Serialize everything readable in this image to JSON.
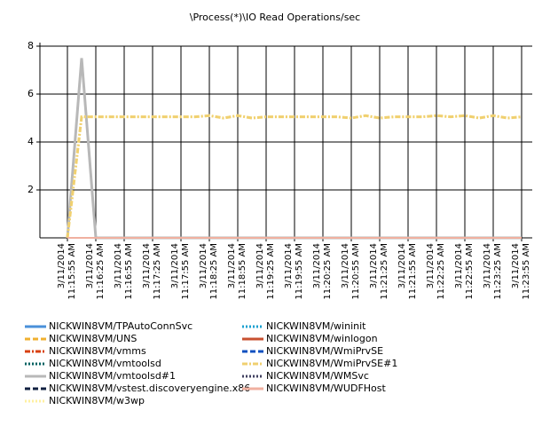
{
  "chart_data": {
    "type": "line",
    "title": "\\Process(*)\\IO Read Operations/sec",
    "categories": [
      "3/11/2014\n11:15:55 AM",
      null,
      "3/11/2014\n11:16:25 AM",
      null,
      "3/11/2014\n11:16:55 AM",
      null,
      "3/11/2014\n11:17:25 AM",
      null,
      "3/11/2014\n11:17:55 AM",
      null,
      "3/11/2014\n11:18:25 AM",
      null,
      "3/11/2014\n11:18:55 AM",
      null,
      "3/11/2014\n11:19:25 AM",
      null,
      "3/11/2014\n11:19:55 AM",
      null,
      "3/11/2014\n11:20:25 AM",
      null,
      "3/11/2014\n11:20:55 AM",
      null,
      "3/11/2014\n11:21:25 AM",
      null,
      "3/11/2014\n11:21:55 AM",
      null,
      "3/11/2014\n11:22:25 AM",
      null,
      "3/11/2014\n11:22:55 AM",
      null,
      "3/11/2014\n11:23:25 AM",
      null,
      "3/11/2014\n11:23:55 AM"
    ],
    "ylim": [
      0,
      8
    ],
    "yticks": [
      2,
      4,
      6,
      8
    ],
    "grid": true,
    "series": [
      {
        "name": "NICKWIN8VM/TPAutoConnSvc",
        "color": "#4a90d9",
        "style": "solid",
        "values": [
          0,
          0,
          0,
          0,
          0,
          0,
          0,
          0,
          0,
          0,
          0,
          0,
          0,
          0,
          0,
          0,
          0,
          0,
          0,
          0,
          0,
          0,
          0,
          0,
          0,
          0,
          0,
          0,
          0,
          0,
          0,
          0,
          0
        ]
      },
      {
        "name": "NICKWIN8VM/UNS",
        "color": "#f0b030",
        "style": "dashed",
        "values": [
          0,
          0,
          0,
          0,
          0,
          0,
          0,
          0,
          0,
          0,
          0,
          0,
          0,
          0,
          0,
          0,
          0,
          0,
          0,
          0,
          0,
          0,
          0,
          0,
          0,
          0,
          0,
          0,
          0,
          0,
          0,
          0,
          0
        ]
      },
      {
        "name": "NICKWIN8VM/vmms",
        "color": "#d84010",
        "style": "dashdot",
        "values": [
          0,
          0,
          0,
          0,
          0,
          0,
          0,
          0,
          0,
          0,
          0,
          0,
          0,
          0,
          0,
          0,
          0,
          0,
          0,
          0,
          0,
          0,
          0,
          0,
          0,
          0,
          0,
          0,
          0,
          0,
          0,
          0,
          0
        ]
      },
      {
        "name": "NICKWIN8VM/vmtoolsd",
        "color": "#006060",
        "style": "dotted",
        "values": [
          0,
          0,
          0,
          0,
          0,
          0,
          0,
          0,
          0,
          0,
          0,
          0,
          0,
          0,
          0,
          0,
          0,
          0,
          0,
          0,
          0,
          0,
          0,
          0,
          0,
          0,
          0,
          0,
          0,
          0,
          0,
          0,
          0
        ]
      },
      {
        "name": "NICKWIN8VM/vmtoolsd#1",
        "color": "#b8b8b8",
        "style": "solid",
        "values": [
          0,
          7.5,
          0,
          0,
          0,
          0,
          0,
          0,
          0,
          0,
          0,
          0,
          0,
          0,
          0,
          0,
          0,
          0,
          0,
          0,
          0,
          0,
          0,
          0,
          0,
          0,
          0,
          0,
          0,
          0,
          0,
          0,
          0
        ]
      },
      {
        "name": "NICKWIN8VM/vstest.discoveryengine.x86",
        "color": "#102040",
        "style": "dashed",
        "values": [
          0,
          0,
          0,
          0,
          0,
          0,
          0,
          0,
          0,
          0,
          0,
          0,
          0,
          0,
          0,
          0,
          0,
          0,
          0,
          0,
          0,
          0,
          0,
          0,
          0,
          0,
          0,
          0,
          0,
          0,
          0,
          0,
          0
        ]
      },
      {
        "name": "NICKWIN8VM/w3wp",
        "color": "#fff0a0",
        "style": "dotted",
        "values": [
          0,
          5.05,
          5.05,
          5.05,
          5.05,
          5.05,
          5.05,
          5.05,
          5.05,
          5.05,
          5.1,
          5.0,
          5.1,
          5.0,
          5.05,
          5.05,
          5.05,
          5.05,
          5.05,
          5.05,
          5.0,
          5.1,
          5.0,
          5.05,
          5.05,
          5.05,
          5.1,
          5.05,
          5.1,
          5.0,
          5.1,
          5.0,
          5.05
        ]
      },
      {
        "name": "NICKWIN8VM/wininit",
        "color": "#1aa0d0",
        "style": "dotted",
        "values": [
          0,
          0,
          0,
          0,
          0,
          0,
          0,
          0,
          0,
          0,
          0,
          0,
          0,
          0,
          0,
          0,
          0,
          0,
          0,
          0,
          0,
          0,
          0,
          0,
          0,
          0,
          0,
          0,
          0,
          0,
          0,
          0,
          0
        ]
      },
      {
        "name": "NICKWIN8VM/winlogon",
        "color": "#c85030",
        "style": "solid",
        "values": [
          0,
          0,
          0,
          0,
          0,
          0,
          0,
          0,
          0,
          0,
          0,
          0,
          0,
          0,
          0,
          0,
          0,
          0,
          0,
          0,
          0,
          0,
          0,
          0,
          0,
          0,
          0,
          0,
          0,
          0,
          0,
          0,
          0
        ]
      },
      {
        "name": "NICKWIN8VM/WmiPrvSE",
        "color": "#1050c0",
        "style": "dashed",
        "values": [
          0,
          0,
          0,
          0,
          0,
          0,
          0,
          0,
          0,
          0,
          0,
          0,
          0,
          0,
          0,
          0,
          0,
          0,
          0,
          0,
          0,
          0,
          0,
          0,
          0,
          0,
          0,
          0,
          0,
          0,
          0,
          0,
          0
        ]
      },
      {
        "name": "NICKWIN8VM/WmiPrvSE#1",
        "color": "#f0d070",
        "style": "dashdot",
        "values": [
          0,
          5.05,
          5.05,
          5.05,
          5.05,
          5.05,
          5.05,
          5.05,
          5.05,
          5.05,
          5.1,
          5.0,
          5.1,
          5.0,
          5.05,
          5.05,
          5.05,
          5.05,
          5.05,
          5.05,
          5.0,
          5.1,
          5.0,
          5.05,
          5.05,
          5.05,
          5.1,
          5.05,
          5.1,
          5.0,
          5.1,
          5.0,
          5.05
        ]
      },
      {
        "name": "NICKWIN8VM/WMSvc",
        "color": "#404060",
        "style": "dotted",
        "values": [
          0,
          0,
          0,
          0,
          0,
          0,
          0,
          0,
          0,
          0,
          0,
          0,
          0,
          0,
          0,
          0,
          0,
          0,
          0,
          0,
          0,
          0,
          0,
          0,
          0,
          0,
          0,
          0,
          0,
          0,
          0,
          0,
          0
        ]
      },
      {
        "name": "NICKWIN8VM/WUDFHost",
        "color": "#f0b0a0",
        "style": "solid",
        "values": [
          0,
          0,
          0,
          0,
          0,
          0,
          0,
          0,
          0,
          0,
          0,
          0,
          0,
          0,
          0,
          0,
          0,
          0,
          0,
          0,
          0,
          0,
          0,
          0,
          0,
          0,
          0,
          0,
          0,
          0,
          0,
          0,
          0
        ]
      }
    ]
  }
}
